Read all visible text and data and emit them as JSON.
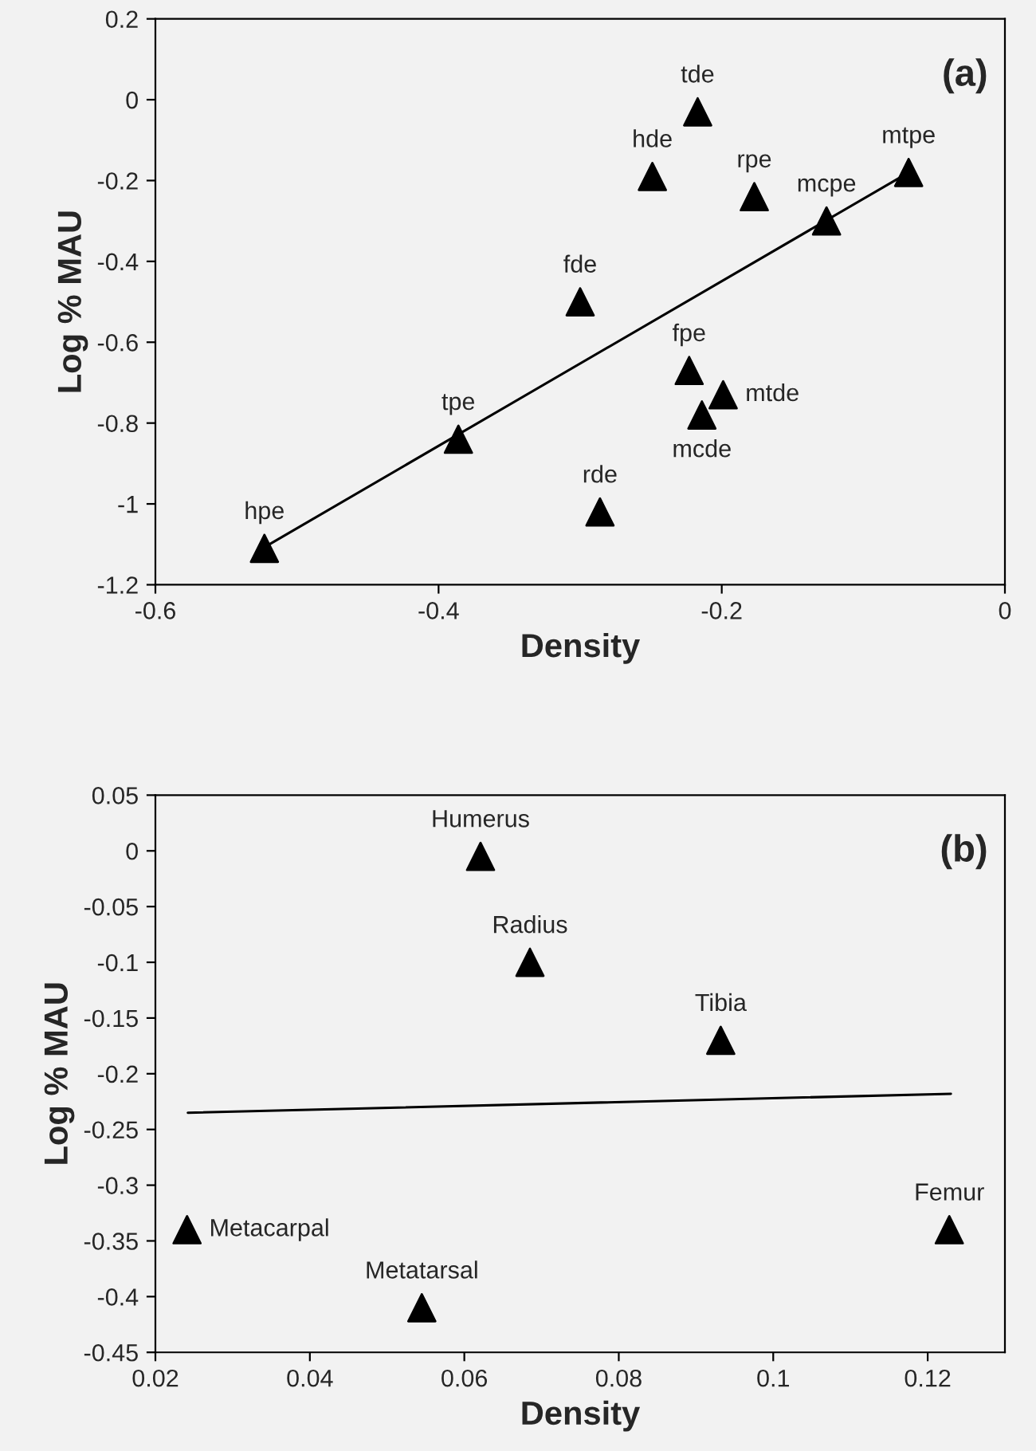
{
  "chart_data": [
    {
      "type": "scatter",
      "xlabel": "Density",
      "ylabel": "Log % MAU",
      "xlim": [
        -0.6,
        0
      ],
      "xticks": [
        -0.6,
        -0.4,
        -0.2,
        0
      ],
      "ylim": [
        -1.2,
        0.2
      ],
      "yticks": [
        -1.2,
        -1,
        -0.8,
        -0.6,
        -0.4,
        -0.2,
        0,
        0.2
      ],
      "grid": false,
      "legend": false,
      "marker": "triangle",
      "series": [
        {
          "color": "#000000",
          "x": [
            -0.523,
            -0.386,
            -0.286,
            -0.3,
            -0.249,
            -0.217,
            -0.177,
            -0.126,
            -0.068,
            -0.223,
            -0.199,
            -0.214
          ],
          "values": [
            -1.11,
            -0.84,
            -1.02,
            -0.5,
            -0.19,
            -0.03,
            -0.24,
            -0.3,
            -0.18,
            -0.67,
            -0.73,
            -0.78
          ]
        },
        {
          "type": "line",
          "marker": "none",
          "color": "#000000",
          "x": [
            -0.523,
            -0.068
          ],
          "values": [
            -1.107,
            -0.18
          ]
        }
      ],
      "annotations": [
        "(a)",
        {
          "text": "hpe",
          "x": -0.523,
          "y": -1.11
        },
        {
          "text": "tpe",
          "x": -0.386,
          "y": -0.84
        },
        {
          "text": "rde",
          "x": -0.286,
          "y": -1.02
        },
        {
          "text": "fde",
          "x": -0.3,
          "y": -0.5
        },
        {
          "text": "hde",
          "x": -0.249,
          "y": -0.19
        },
        {
          "text": "tde",
          "x": -0.217,
          "y": -0.03
        },
        {
          "text": "rpe",
          "x": -0.177,
          "y": -0.24
        },
        {
          "text": "mcpe",
          "x": -0.126,
          "y": -0.3
        },
        {
          "text": "mtpe",
          "x": -0.068,
          "y": -0.18
        },
        {
          "text": "fpe",
          "x": -0.223,
          "y": -0.67
        },
        {
          "text": "mtde",
          "x": -0.199,
          "y": -0.73
        },
        {
          "text": "mcde",
          "x": -0.214,
          "y": -0.78
        }
      ]
    },
    {
      "type": "scatter",
      "xlabel": "Density",
      "ylabel": "Log % MAU",
      "xlim": [
        0.02,
        0.13
      ],
      "xticks": [
        0.02,
        0.04,
        0.06,
        0.08,
        0.1,
        0.12
      ],
      "ylim": [
        -0.45,
        0.05
      ],
      "yticks": [
        -0.45,
        -0.4,
        -0.35,
        -0.3,
        -0.25,
        -0.2,
        -0.15,
        -0.1,
        -0.05,
        0,
        0.05
      ],
      "grid": false,
      "legend": false,
      "marker": "triangle",
      "series": [
        {
          "color": "#000000",
          "x": [
            0.0621,
            0.0685,
            0.0932,
            0.0241,
            0.1228,
            0.0545
          ],
          "values": [
            -0.005,
            -0.1,
            -0.17,
            -0.34,
            -0.34,
            -0.41
          ]
        },
        {
          "type": "line",
          "marker": "none",
          "color": "#000000",
          "x": [
            0.0242,
            0.123
          ],
          "values": [
            -0.235,
            -0.218
          ]
        }
      ],
      "annotations": [
        "(b)",
        {
          "text": "Humerus",
          "x": 0.0621,
          "y": -0.005
        },
        {
          "text": "Radius",
          "x": 0.0685,
          "y": -0.1
        },
        {
          "text": "Tibia",
          "x": 0.0932,
          "y": -0.17
        },
        {
          "text": "Metacarpal",
          "x": 0.0241,
          "y": -0.34
        },
        {
          "text": "Femur",
          "x": 0.1228,
          "y": -0.34
        },
        {
          "text": "Metatarsal",
          "x": 0.0545,
          "y": -0.41
        }
      ]
    }
  ]
}
